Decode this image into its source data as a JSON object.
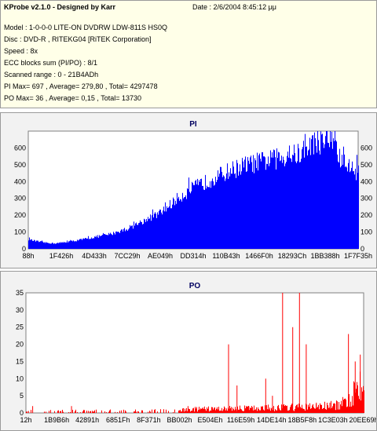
{
  "header": {
    "app_title": "KProbe v2.1.0 - Designed by Karr",
    "date": "Date : 2/6/2004 8:45:12 μμ",
    "lines": [
      "Model : 1-0-0-0 LITE-ON DVDRW LDW-811S   HS0Q",
      "Disc : DVD-R , RITEKG04 [RiTEK Corporation]",
      "Speed : 8x",
      "ECC blocks sum (PI/PO) : 8/1",
      "Scanned range : 0 - 21B4ADh",
      "PI Max= 697 , Average= 279,80 , Total= 4297478",
      "PO Max= 36 , Average= 0,15 , Total= 13730"
    ]
  },
  "colors": {
    "pi": "#0000ff",
    "po": "#ff0000",
    "plot_bg": "#ffffff",
    "panel_bg": "#f2f2f2",
    "info_bg": "#ffffe8",
    "title": "#000060"
  },
  "chart_data": [
    {
      "type": "area",
      "title": "PI",
      "xlabel": "",
      "ylabel": "",
      "ylim": [
        0,
        700
      ],
      "yticks": [
        0,
        100,
        200,
        300,
        400,
        500,
        600
      ],
      "xtick_labels": [
        "88h",
        "1F426h",
        "4D433h",
        "7CC29h",
        "AE049h",
        "DD314h",
        "110B43h",
        "1466F0h",
        "18293Ch",
        "1BB388h",
        "1F7F35h"
      ],
      "x": [
        0.0,
        0.02,
        0.05,
        0.08,
        0.1,
        0.15,
        0.2,
        0.25,
        0.3,
        0.35,
        0.4,
        0.45,
        0.5,
        0.55,
        0.6,
        0.65,
        0.7,
        0.75,
        0.8,
        0.84,
        0.85,
        0.9,
        0.93,
        0.94,
        0.98,
        1.0
      ],
      "values": [
        60,
        50,
        40,
        35,
        40,
        55,
        75,
        95,
        130,
        180,
        230,
        320,
        390,
        440,
        490,
        530,
        555,
        575,
        600,
        610,
        670,
        690,
        690,
        580,
        510,
        490
      ],
      "grid": false
    },
    {
      "type": "bar",
      "title": "PO",
      "xlabel": "",
      "ylabel": "",
      "ylim": [
        0,
        35
      ],
      "yticks": [
        0,
        5,
        10,
        15,
        20,
        25,
        30,
        35
      ],
      "xtick_labels": [
        "12h",
        "1B9B6h",
        "42891h",
        "6851Fh",
        "8F371h",
        "BB002h",
        "E504Eh",
        "116E59h",
        "14DE14h",
        "18B5F8h",
        "1C3E03h",
        "20EE69h"
      ],
      "spikes": [
        {
          "x": 0.02,
          "value": 2
        },
        {
          "x": 0.135,
          "value": 2
        },
        {
          "x": 0.48,
          "value": 2
        },
        {
          "x": 0.6,
          "value": 20
        },
        {
          "x": 0.625,
          "value": 8
        },
        {
          "x": 0.66,
          "value": 2
        },
        {
          "x": 0.71,
          "value": 10
        },
        {
          "x": 0.73,
          "value": 5
        },
        {
          "x": 0.76,
          "value": 35
        },
        {
          "x": 0.79,
          "value": 25
        },
        {
          "x": 0.81,
          "value": 36
        },
        {
          "x": 0.83,
          "value": 20
        },
        {
          "x": 0.86,
          "value": 3
        },
        {
          "x": 0.9,
          "value": 3
        },
        {
          "x": 0.955,
          "value": 23
        },
        {
          "x": 0.975,
          "value": 15
        },
        {
          "x": 0.99,
          "value": 17
        }
      ],
      "baseline": [
        {
          "x": 0.0,
          "value": 0.6
        },
        {
          "x": 0.45,
          "value": 0.8
        },
        {
          "x": 0.5,
          "value": 1.2
        },
        {
          "x": 0.7,
          "value": 1.6
        },
        {
          "x": 0.85,
          "value": 2.0
        },
        {
          "x": 0.93,
          "value": 2.5
        },
        {
          "x": 0.96,
          "value": 5
        },
        {
          "x": 0.98,
          "value": 9
        },
        {
          "x": 1.0,
          "value": 14
        }
      ],
      "grid": false
    }
  ]
}
